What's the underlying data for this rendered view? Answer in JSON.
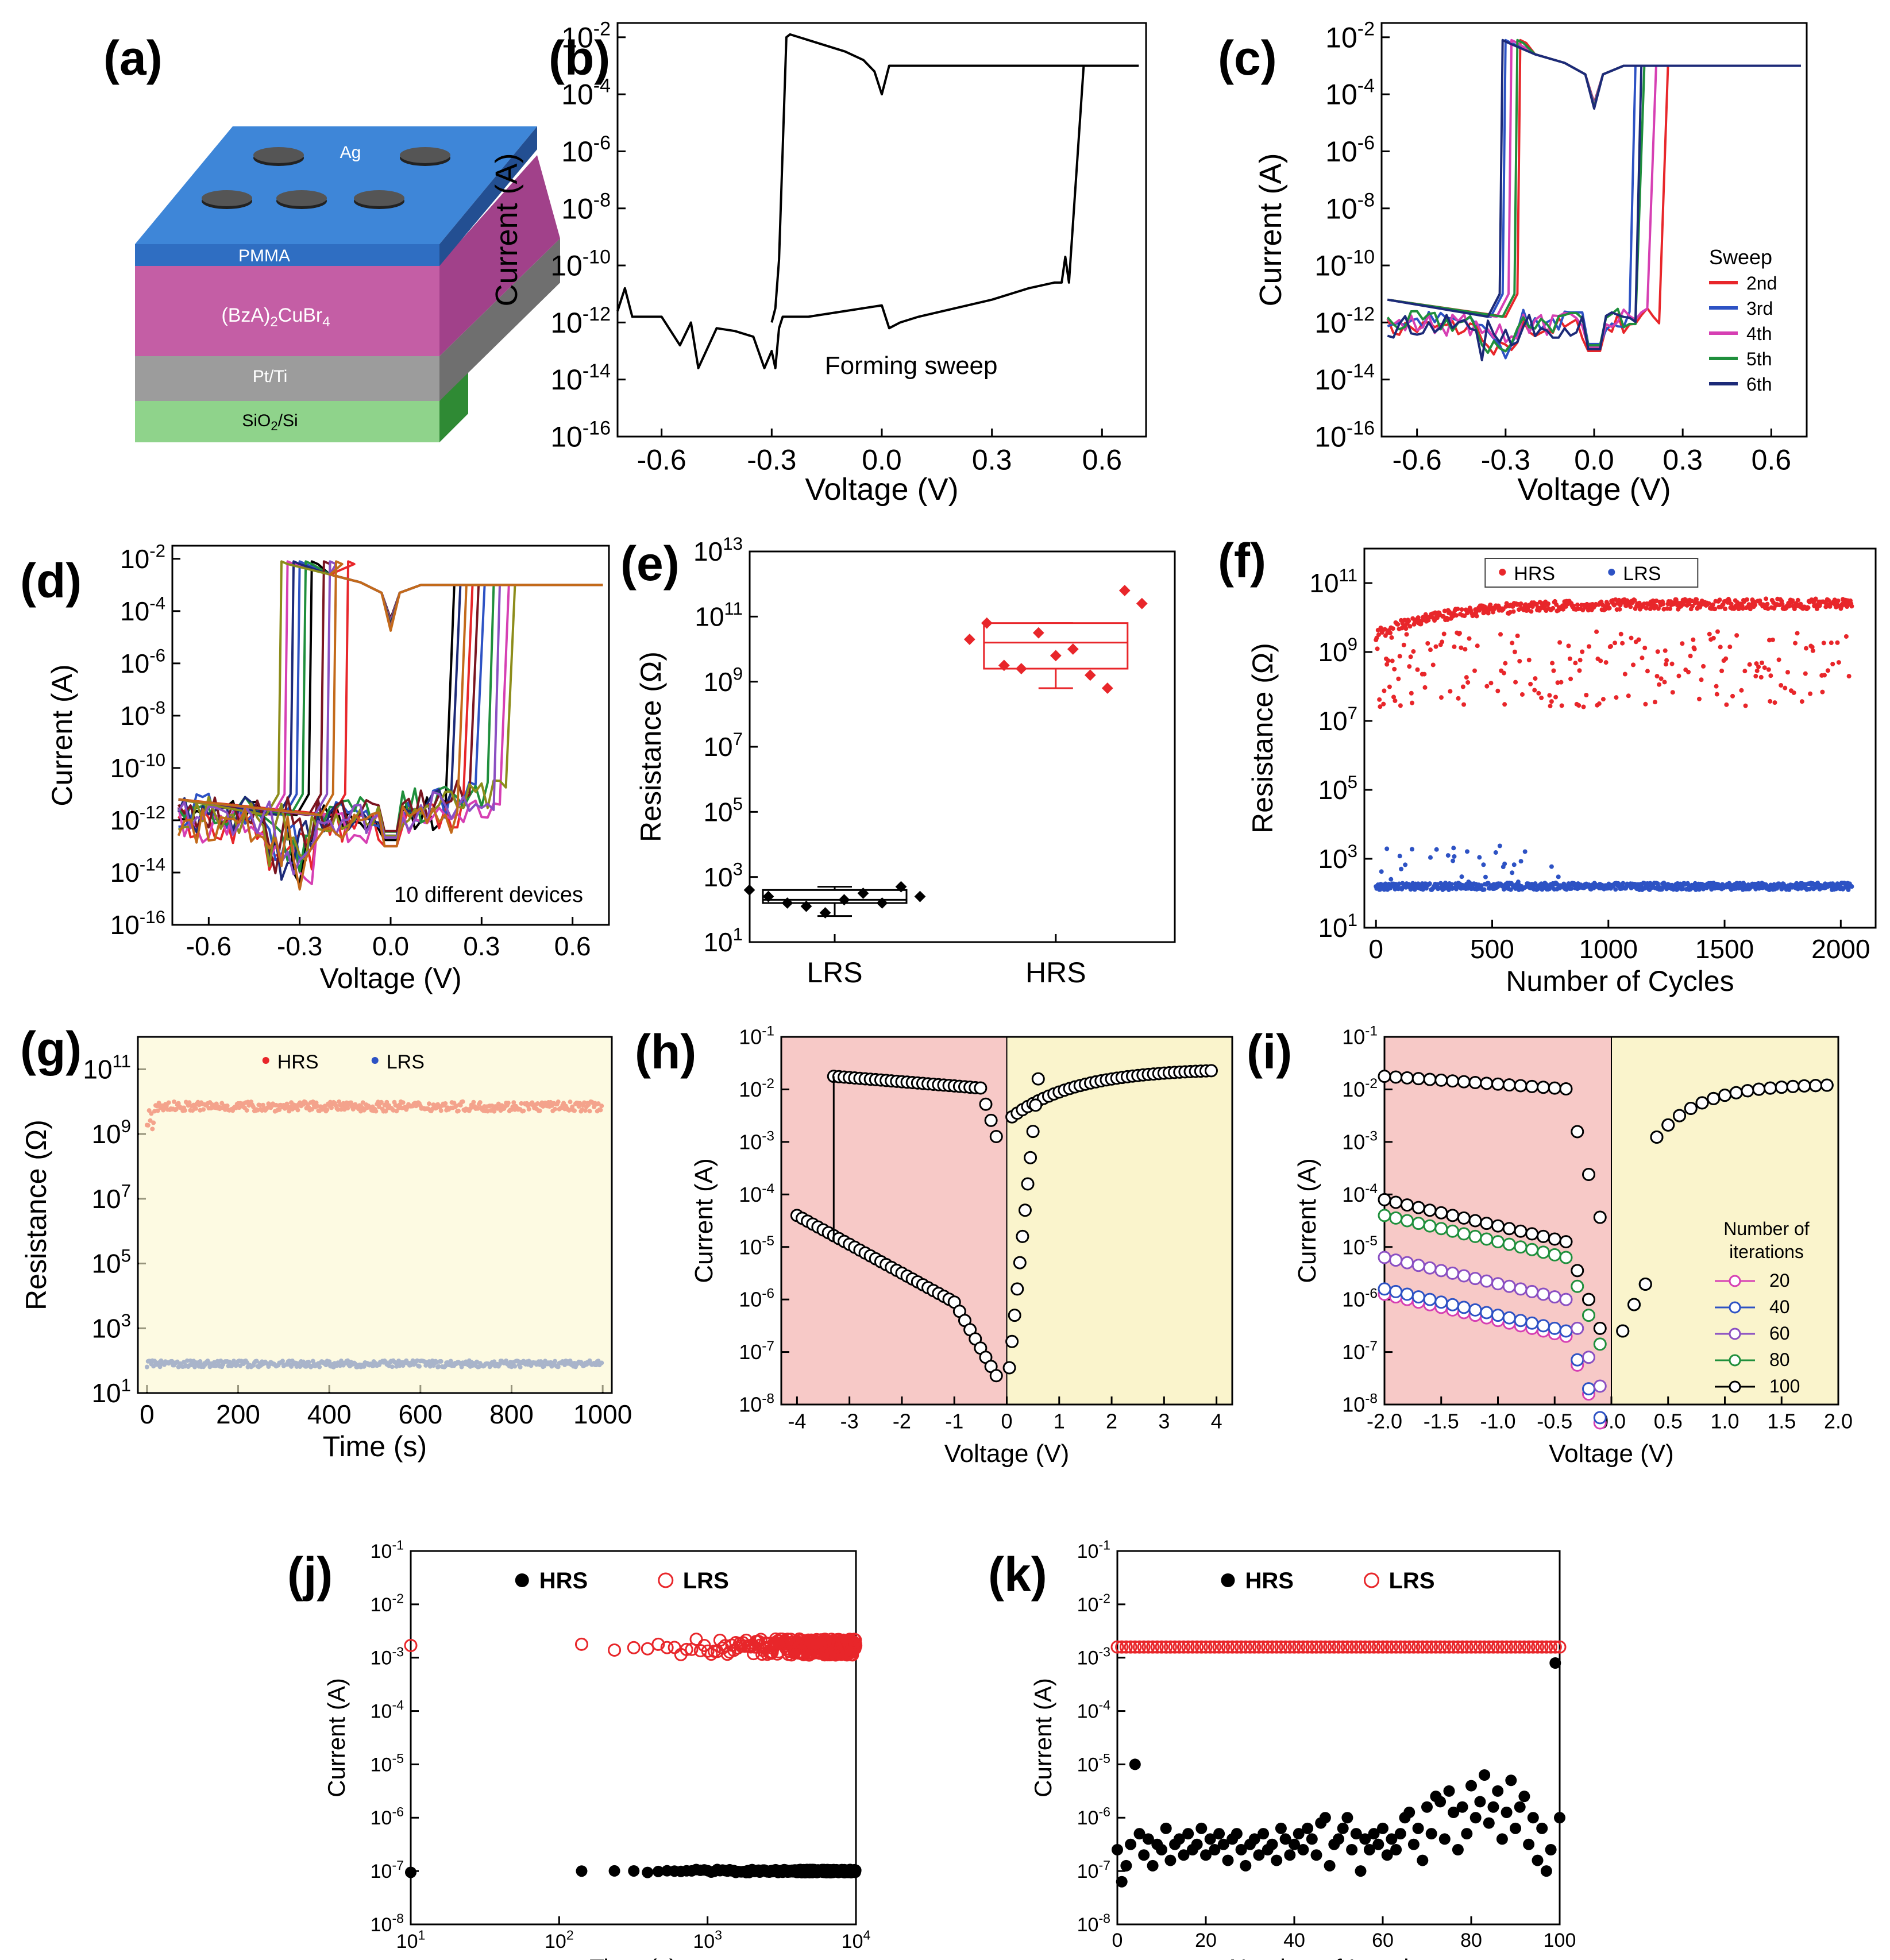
{
  "panel_labels": [
    "(a)",
    "(b)",
    "(c)",
    "(d)",
    "(e)",
    "(f)",
    "(g)",
    "(h)",
    "(i)",
    "(j)",
    "(k)"
  ],
  "device_schematic": {
    "layers": [
      {
        "label": "Ag",
        "color": "#2f6fc4"
      },
      {
        "label": "PMMA",
        "color": "#2f6fc4"
      },
      {
        "label": "(BzA)2CuBr4",
        "color": "#c9559d"
      },
      {
        "label": "Pt/Ti",
        "color": "#8a8a8a"
      },
      {
        "label": "SiO2/Si",
        "color": "#49a94a"
      }
    ]
  },
  "chart_data": [
    {
      "panel": "(b)",
      "type": "line",
      "xlabel": "Voltage (V)",
      "ylabel": "Current (A)",
      "xlim": [
        -0.72,
        0.72
      ],
      "ylim_log10": [
        -16,
        -1.5
      ],
      "yscale": "log",
      "xticks": [
        "-0.6",
        "-0.3",
        "0.0",
        "0.3",
        "0.6"
      ],
      "yticks_exp": [
        "-2",
        "-4",
        "-6",
        "-8",
        "-10",
        "-12",
        "-14",
        "-16"
      ],
      "annotation": "Forming sweep",
      "series": [
        {
          "color": "#000000",
          "x": [
            -0.72,
            -0.7,
            -0.68,
            -0.6,
            -0.55,
            -0.52,
            -0.5,
            -0.45,
            -0.4,
            -0.35,
            -0.32,
            -0.3,
            -0.29,
            -0.28,
            -0.27,
            -0.25,
            -0.2,
            -0.1,
            0.0,
            0.02,
            0.05,
            0.1,
            0.2,
            0.3,
            0.4,
            0.47,
            0.49,
            0.5,
            0.51,
            0.55,
            0.7
          ],
          "y": [
            -11.6,
            -10.8,
            -11.8,
            -11.8,
            -12.8,
            -12.0,
            -13.6,
            -12.2,
            -12.3,
            -12.5,
            -13.6,
            -13.0,
            -13.6,
            -12.2,
            -11.8,
            -11.8,
            -11.8,
            -11.6,
            -11.4,
            -12.2,
            -12.0,
            -11.8,
            -11.5,
            -11.2,
            -10.8,
            -10.6,
            -10.6,
            -9.7,
            -10.6,
            -3.0,
            -3.0
          ]
        },
        {
          "color": "#000000",
          "x": [
            0.7,
            0.6,
            0.4,
            0.2,
            0.1,
            0.05,
            0.02,
            0.0,
            -0.02,
            -0.05,
            -0.1,
            -0.2,
            -0.25,
            -0.26,
            -0.28,
            -0.29,
            -0.3
          ],
          "y": [
            -3.0,
            -3.0,
            -3.0,
            -3.0,
            -3.0,
            -3.0,
            -3.0,
            -4.0,
            -3.2,
            -2.8,
            -2.5,
            -2.1,
            -1.9,
            -2.0,
            -9.8,
            -11.5,
            -12.0
          ]
        }
      ]
    },
    {
      "panel": "(c)",
      "type": "line",
      "xlabel": "Voltage (V)",
      "ylabel": "Current (A)",
      "xlim": [
        -0.72,
        0.72
      ],
      "ylim_log10": [
        -16,
        -1.5
      ],
      "yscale": "log",
      "xticks": [
        "-0.6",
        "-0.3",
        "0.0",
        "0.3",
        "0.6"
      ],
      "yticks_exp": [
        "-2",
        "-4",
        "-6",
        "-8",
        "-10",
        "-12",
        "-14",
        "-16"
      ],
      "legend_title": "Sweep",
      "legend_position": "right",
      "series": [
        {
          "name": "2nd",
          "color": "#e8262a",
          "set_v": 0.24,
          "reset_v": -0.25
        },
        {
          "name": "3rd",
          "color": "#2d52c4",
          "set_v": 0.13,
          "reset_v": -0.3
        },
        {
          "name": "4th",
          "color": "#d63fb3",
          "set_v": 0.2,
          "reset_v": -0.28
        },
        {
          "name": "5th",
          "color": "#1f8f3c",
          "set_v": 0.16,
          "reset_v": -0.26
        },
        {
          "name": "6th",
          "color": "#1c2a78",
          "set_v": 0.15,
          "reset_v": -0.31
        }
      ]
    },
    {
      "panel": "(d)",
      "type": "line",
      "xlabel": "Voltage (V)",
      "ylabel": "Current (A)",
      "xlim": [
        -0.72,
        0.72
      ],
      "ylim_log10": [
        -16,
        -1.5
      ],
      "yscale": "log",
      "xticks": [
        "-0.6",
        "-0.3",
        "0.0",
        "0.3",
        "0.6"
      ],
      "yticks_exp": [
        "-2",
        "-4",
        "-6",
        "-8",
        "-10",
        "-12",
        "-14",
        "-16"
      ],
      "annotation": "10 different devices",
      "series": [
        {
          "color": "#000000",
          "set_v": 0.2,
          "reset_v": -0.26
        },
        {
          "color": "#e8262a",
          "set_v": 0.26,
          "reset_v": -0.14
        },
        {
          "color": "#2d52c4",
          "set_v": 0.3,
          "reset_v": -0.3
        },
        {
          "color": "#d63fb3",
          "set_v": 0.38,
          "reset_v": -0.34
        },
        {
          "color": "#1f8f3c",
          "set_v": 0.33,
          "reset_v": -0.28
        },
        {
          "color": "#1c2a78",
          "set_v": 0.22,
          "reset_v": -0.32
        },
        {
          "color": "#7a1520",
          "set_v": 0.28,
          "reset_v": -0.22
        },
        {
          "color": "#8c8c1a",
          "set_v": 0.4,
          "reset_v": -0.36
        },
        {
          "color": "#8a4fc2",
          "set_v": 0.35,
          "reset_v": -0.2
        },
        {
          "color": "#c36a1a",
          "set_v": 0.24,
          "reset_v": -0.18
        }
      ]
    },
    {
      "panel": "(e)",
      "type": "box",
      "xlabel": "",
      "ylabel": "Resistance (Ω)",
      "categories": [
        "LRS",
        "HRS"
      ],
      "yscale": "log",
      "ylim_log10": [
        1,
        13
      ],
      "yticks_exp": [
        "13",
        "11",
        "9",
        "7",
        "5",
        "3",
        "1"
      ],
      "series": [
        {
          "name": "LRS",
          "color": "#000000",
          "q1": 2.2,
          "median": 2.3,
          "q3": 2.6,
          "whisker_low": 1.8,
          "whisker_high": 2.7,
          "points": [
            2.6,
            2.4,
            2.2,
            2.1,
            1.9,
            2.3,
            2.5,
            2.2,
            2.7,
            2.4
          ]
        },
        {
          "name": "HRS",
          "color": "#e8262a",
          "q1": 9.4,
          "median": 10.2,
          "q3": 10.8,
          "whisker_low": 8.8,
          "whisker_high": 10.8,
          "points": [
            10.3,
            10.8,
            9.5,
            9.4,
            10.5,
            9.8,
            10.0,
            9.2,
            8.8,
            11.8,
            11.4
          ]
        }
      ]
    },
    {
      "panel": "(f)",
      "type": "scatter",
      "xlabel": "Number of Cycles",
      "ylabel": "Resistance (Ω)",
      "xlim": [
        -50,
        2150
      ],
      "ylim_log10": [
        1,
        12
      ],
      "yscale": "log",
      "xticks": [
        "0",
        "500",
        "1000",
        "1500",
        "2000"
      ],
      "yticks_exp": [
        "11",
        "9",
        "7",
        "5",
        "3",
        "1"
      ],
      "legend_position": "top",
      "series": [
        {
          "name": "HRS",
          "color": "#e8262a",
          "baseline_log10": 10.4,
          "spread_low": 7.4
        },
        {
          "name": "LRS",
          "color": "#2d52c4",
          "baseline_log10": 2.2,
          "spread_high": 3.4
        }
      ]
    },
    {
      "panel": "(g)",
      "type": "scatter",
      "xlabel": "Time (s)",
      "ylabel": "Resistance (Ω)",
      "xlim": [
        -20,
        1020
      ],
      "ylim_log10": [
        1,
        12
      ],
      "yscale": "log",
      "xticks": [
        "0",
        "200",
        "400",
        "600",
        "800",
        "1000"
      ],
      "yticks_exp": [
        "11",
        "9",
        "7",
        "5",
        "3",
        "1"
      ],
      "legend_position": "top",
      "series": [
        {
          "name": "HRS",
          "color": "#e8262a",
          "baseline_log10": 9.85
        },
        {
          "name": "LRS",
          "color": "#2d52c4",
          "baseline_log10": 1.9
        }
      ]
    },
    {
      "panel": "(h)",
      "type": "scatter",
      "xlabel": "Voltage (V)",
      "ylabel": "Current (A)",
      "xlim": [
        -4.3,
        4.3
      ],
      "ylim_log10": [
        -8,
        -1
      ],
      "yscale": "log",
      "xticks": [
        "-4",
        "-3",
        "-2",
        "-1",
        "0",
        "1",
        "2",
        "3",
        "4"
      ],
      "yticks_exp": [
        "-1",
        "-2",
        "-3",
        "-4",
        "-5",
        "-6",
        "-7",
        "-8"
      ]
    },
    {
      "panel": "(i)",
      "type": "scatter",
      "xlabel": "Voltage (V)",
      "ylabel": "Current (A)",
      "xlim": [
        -2.0,
        2.0
      ],
      "ylim_log10": [
        -8,
        -1
      ],
      "yscale": "log",
      "xticks": [
        "-2.0",
        "-1.5",
        "-1.0",
        "-0.5",
        "0.0",
        "0.5",
        "1.0",
        "1.5",
        "2.0"
      ],
      "yticks_exp": [
        "-1",
        "-2",
        "-3",
        "-4",
        "-5",
        "-6",
        "-7",
        "-8"
      ],
      "legend_title": "Number of iterations",
      "legend_position": "right",
      "series": [
        {
          "name": "20",
          "color": "#d63fb3",
          "low_log10": -5.9
        },
        {
          "name": "40",
          "color": "#2d52c4",
          "low_log10": -5.8
        },
        {
          "name": "60",
          "color": "#8a4fc2",
          "low_log10": -5.2
        },
        {
          "name": "80",
          "color": "#1f8f3c",
          "low_log10": -4.4
        },
        {
          "name": "100",
          "color": "#000000",
          "low_log10": -4.1
        }
      ]
    },
    {
      "panel": "(j)",
      "type": "scatter",
      "xlabel": "Time (s)",
      "ylabel": "Current (A)",
      "xscale": "log",
      "xlim_log10": [
        1,
        4
      ],
      "ylim_log10": [
        -8,
        -1
      ],
      "yscale": "log",
      "xticks_exp": [
        "1",
        "2",
        "3",
        "4"
      ],
      "yticks_exp": [
        "-1",
        "-2",
        "-3",
        "-4",
        "-5",
        "-6",
        "-7",
        "-8"
      ],
      "legend_position": "top",
      "series": [
        {
          "name": "HRS",
          "color": "#000000",
          "marker": "filled",
          "baseline_log10": -7.0
        },
        {
          "name": "LRS",
          "color": "#e8262a",
          "marker": "open",
          "baseline_log10": -2.8
        }
      ]
    },
    {
      "panel": "(k)",
      "type": "scatter",
      "xlabel": "Number of Iterations",
      "ylabel": "Current (A)",
      "xlim": [
        0,
        100
      ],
      "ylim_log10": [
        -8,
        -1
      ],
      "yscale": "log",
      "xticks": [
        "0",
        "20",
        "40",
        "60",
        "80",
        "100"
      ],
      "yticks_exp": [
        "-1",
        "-2",
        "-3",
        "-4",
        "-5",
        "-6",
        "-7",
        "-8"
      ],
      "legend_position": "top",
      "series": [
        {
          "name": "HRS",
          "color": "#000000",
          "marker": "filled",
          "values": [
            -6.6,
            -7.2,
            -6.9,
            -6.5,
            -5.0,
            -6.3,
            -6.7,
            -6.4,
            -6.9,
            -6.5,
            -6.6,
            -6.2,
            -6.8,
            -6.5,
            -6.4,
            -6.7,
            -6.3,
            -6.6,
            -6.5,
            -6.2,
            -6.7,
            -6.4,
            -6.6,
            -6.3,
            -6.5,
            -6.8,
            -6.4,
            -6.3,
            -6.6,
            -6.9,
            -6.5,
            -6.4,
            -6.7,
            -6.3,
            -6.6,
            -6.5,
            -6.8,
            -6.2,
            -6.4,
            -6.7,
            -6.5,
            -6.3,
            -6.6,
            -6.2,
            -6.4,
            -6.7,
            -6.1,
            -6.0,
            -6.9,
            -6.5,
            -6.4,
            -6.2,
            -6.0,
            -6.6,
            -6.3,
            -7.0,
            -6.4,
            -6.6,
            -6.3,
            -6.5,
            -6.2,
            -6.7,
            -6.4,
            -6.6,
            -6.3,
            -6.0,
            -5.9,
            -6.5,
            -6.2,
            -6.8,
            -5.8,
            -6.3,
            -5.6,
            -5.7,
            -6.4,
            -5.5,
            -5.9,
            -6.6,
            -5.8,
            -6.3,
            -5.4,
            -6.0,
            -5.7,
            -5.2,
            -6.1,
            -5.8,
            -5.5,
            -6.4,
            -5.9,
            -5.3,
            -6.2,
            -5.8,
            -5.6,
            -6.5,
            -6.0,
            -6.8,
            -6.2,
            -7.0,
            -6.6,
            -3.1,
            -6.0
          ]
        },
        {
          "name": "LRS",
          "color": "#e8262a",
          "marker": "open",
          "baseline_log10": -2.8
        }
      ]
    }
  ],
  "inset_photo_h": "device-photo"
}
